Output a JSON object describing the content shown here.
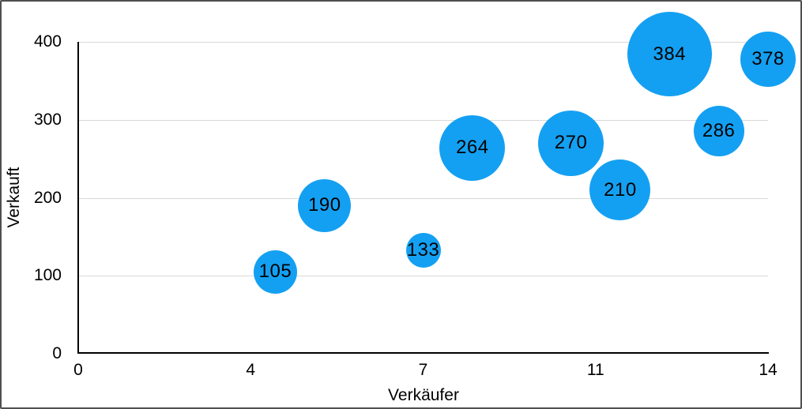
{
  "figure": {
    "background_color": "#ffffff",
    "border_color": "#4f4f4f"
  },
  "chart_data": {
    "type": "scatter",
    "subtype": "bubble",
    "title": "",
    "xlabel": "Verkäufer",
    "ylabel": "Verkauft",
    "xlim": [
      0,
      14
    ],
    "ylim": [
      0,
      400
    ],
    "grid": "horizontal-only",
    "legend_position": "none",
    "x_ticks": [
      {
        "value": 0,
        "label": "0"
      },
      {
        "value": 3.5,
        "label": "4"
      },
      {
        "value": 7,
        "label": "7"
      },
      {
        "value": 10.5,
        "label": "11"
      },
      {
        "value": 14,
        "label": "14"
      }
    ],
    "y_ticks": [
      {
        "value": 0,
        "label": "0"
      },
      {
        "value": 100,
        "label": "100"
      },
      {
        "value": 200,
        "label": "200"
      },
      {
        "value": 300,
        "label": "300"
      },
      {
        "value": 400,
        "label": "400"
      }
    ],
    "series": [
      {
        "name": "Verkauft",
        "color": "#14a0f2",
        "points": [
          {
            "x": 4,
            "y": 105,
            "label": "105",
            "radius_px": 27.5
          },
          {
            "x": 5,
            "y": 190,
            "label": "190",
            "radius_px": 33.5
          },
          {
            "x": 7,
            "y": 133,
            "label": "133",
            "radius_px": 22
          },
          {
            "x": 8,
            "y": 264,
            "label": "264",
            "radius_px": 41.5
          },
          {
            "x": 10,
            "y": 270,
            "label": "270",
            "radius_px": 41.5
          },
          {
            "x": 11,
            "y": 210,
            "label": "210",
            "radius_px": 38.5
          },
          {
            "x": 12,
            "y": 384,
            "label": "384",
            "radius_px": 53.5
          },
          {
            "x": 13,
            "y": 286,
            "label": "286",
            "radius_px": 32
          },
          {
            "x": 14,
            "y": 378,
            "label": "378",
            "radius_px": 35
          }
        ]
      }
    ],
    "colors": {
      "bubble": "#14a0f2",
      "gridline": "#d9d9d9",
      "axis": "#000000",
      "text": "#000000"
    }
  }
}
